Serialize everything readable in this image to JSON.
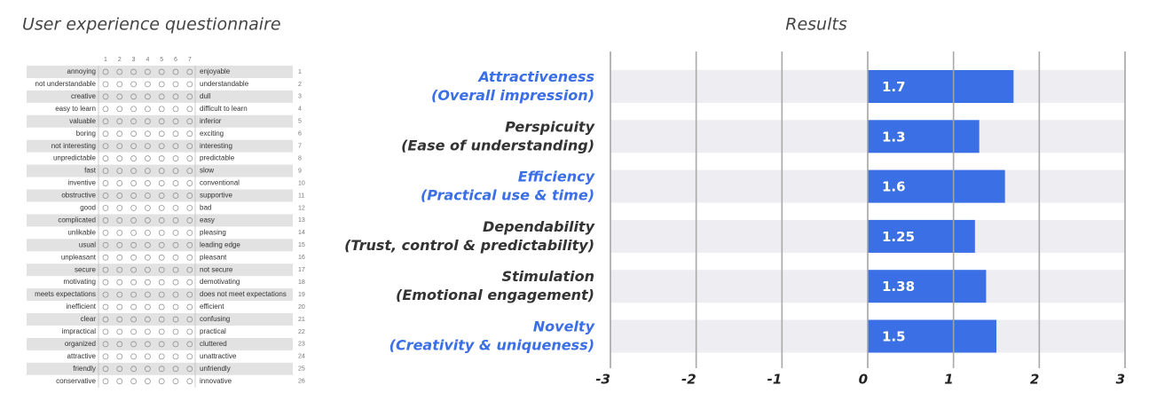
{
  "questionnaire": {
    "title": "User experience questionnaire",
    "scale": [
      1,
      2,
      3,
      4,
      5,
      6,
      7
    ],
    "rows": [
      {
        "left": "annoying",
        "right": "enjoyable",
        "number": 1
      },
      {
        "left": "not understandable",
        "right": "understandable",
        "number": 2
      },
      {
        "left": "creative",
        "right": "dull",
        "number": 3
      },
      {
        "left": "easy to learn",
        "right": "difficult to learn",
        "number": 4
      },
      {
        "left": "valuable",
        "right": "inferior",
        "number": 5
      },
      {
        "left": "boring",
        "right": "exciting",
        "number": 6
      },
      {
        "left": "not interesting",
        "right": "interesting",
        "number": 7
      },
      {
        "left": "unpredictable",
        "right": "predictable",
        "number": 8
      },
      {
        "left": "fast",
        "right": "slow",
        "number": 9
      },
      {
        "left": "inventive",
        "right": "conventional",
        "number": 10
      },
      {
        "left": "obstructive",
        "right": "supportive",
        "number": 11
      },
      {
        "left": "good",
        "right": "bad",
        "number": 12
      },
      {
        "left": "complicated",
        "right": "easy",
        "number": 13
      },
      {
        "left": "unlikable",
        "right": "pleasing",
        "number": 14
      },
      {
        "left": "usual",
        "right": "leading edge",
        "number": 15
      },
      {
        "left": "unpleasant",
        "right": "pleasant",
        "number": 16
      },
      {
        "left": "secure",
        "right": "not secure",
        "number": 17
      },
      {
        "left": "motivating",
        "right": "demotivating",
        "number": 18
      },
      {
        "left": "meets expectations",
        "right": "does not meet expectations",
        "number": 19
      },
      {
        "left": "inefficient",
        "right": "efficient",
        "number": 20
      },
      {
        "left": "clear",
        "right": "confusing",
        "number": 21
      },
      {
        "left": "impractical",
        "right": "practical",
        "number": 22
      },
      {
        "left": "organized",
        "right": "cluttered",
        "number": 23
      },
      {
        "left": "attractive",
        "right": "unattractive",
        "number": 24
      },
      {
        "left": "friendly",
        "right": "unfriendly",
        "number": 25
      },
      {
        "left": "conservative",
        "right": "innovative",
        "number": 26
      }
    ]
  },
  "chart_data": {
    "type": "hbar",
    "title": "Results",
    "categories": [
      "Attractiveness",
      "Perspicuity",
      "Efficiency",
      "Dependability",
      "Stimulation",
      "Novelty"
    ],
    "category_notes": [
      "(Overall impression)",
      "(Ease of understanding)",
      "(Practical use & time)",
      "(Trust, control & predictability)",
      "(Emotional engagement)",
      "(Creativity & uniqueness)"
    ],
    "category_colors": [
      "#3b6fe6",
      "#333333",
      "#3b6fe6",
      "#333333",
      "#333333",
      "#3b6fe6"
    ],
    "values": [
      1.7,
      1.3,
      1.6,
      1.25,
      1.38,
      1.5
    ],
    "color": "#3b6fe6",
    "xlim": [
      -3,
      3
    ],
    "xticks": [
      -3,
      -2,
      -1,
      0,
      1,
      2,
      3
    ],
    "grid": true
  }
}
